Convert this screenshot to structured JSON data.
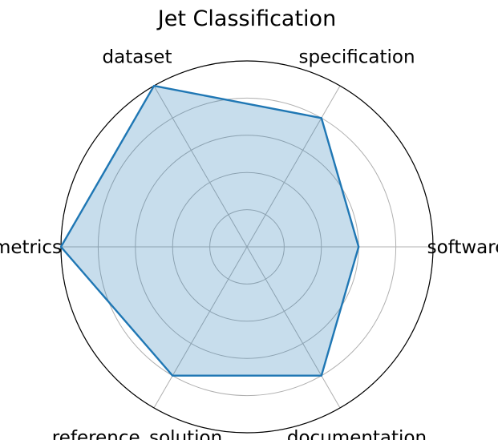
{
  "chart_data": {
    "type": "radar",
    "title": "Jet Classification",
    "categories": [
      "software",
      "specification",
      "dataset",
      "metrics",
      "reference_solution",
      "documentation"
    ],
    "series": [
      {
        "values": [
          3,
          4,
          5,
          5,
          4,
          4
        ]
      }
    ],
    "rlim": [
      0,
      5
    ],
    "rticks": [
      1,
      2,
      3,
      4,
      5
    ],
    "grid": true,
    "legend": "none",
    "colors": {
      "line": "#1f77b4",
      "fill": "#1f77b4",
      "grid": "#b0b0b0",
      "frame": "#000000"
    }
  }
}
